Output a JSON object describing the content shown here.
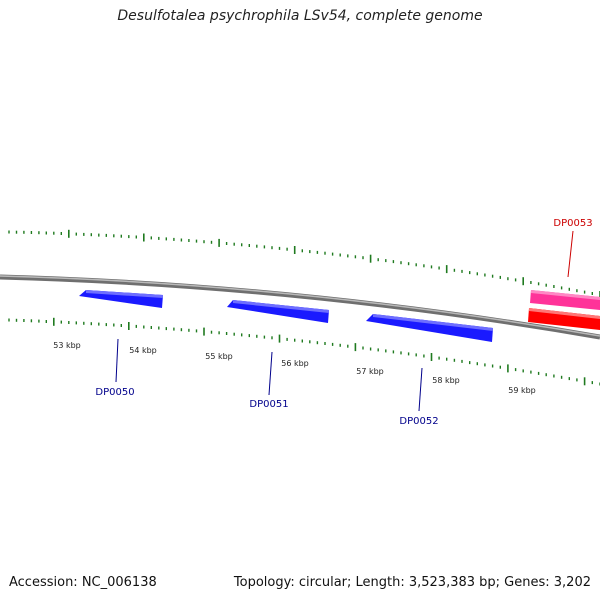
{
  "title": "Desulfotalea psychrophila LSv54, complete genome",
  "accession_label": "Accession: NC_006138",
  "summary_label": "Topology: circular; Length: 3,523,383 bp; Genes: 3,202",
  "colors": {
    "backbone": "#7f7f7f",
    "tick": "#1f7a1f",
    "forward_gene": "#ff3399",
    "reverse_gene": "#1a1aff",
    "red_gene": "#ff0000",
    "gene_label_reverse": "#00008b",
    "gene_label_forward": "#cc0000"
  },
  "scale_labels": [
    "53 kbp",
    "54 kbp",
    "55 kbp",
    "56 kbp",
    "57 kbp",
    "58 kbp",
    "59 kbp"
  ],
  "genes": [
    {
      "name": "DP0050",
      "strand": "-"
    },
    {
      "name": "DP0051",
      "strand": "-"
    },
    {
      "name": "DP0052",
      "strand": "-"
    },
    {
      "name": "DP0053",
      "strand": "+"
    }
  ]
}
